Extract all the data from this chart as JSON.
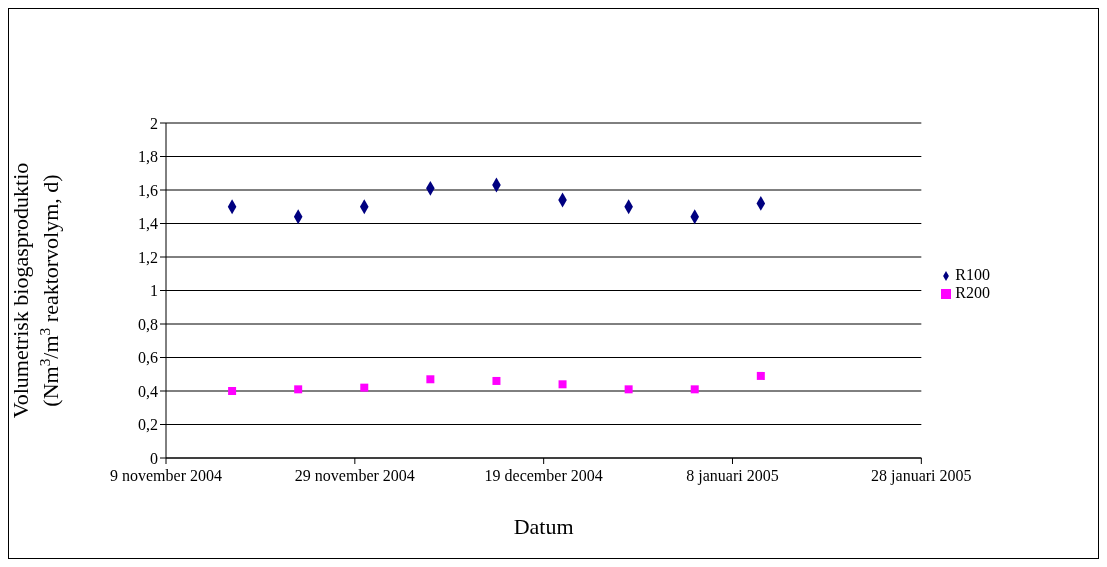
{
  "chart_data": {
    "type": "scatter",
    "xlabel": "Datum",
    "ylabel": "Volumetrisk biogasproduktio (Nm$^{3}$/m$^{3}$ reaktorvolym, d)",
    "x": [
      "2004-11-16",
      "2004-11-23",
      "2004-11-30",
      "2004-12-07",
      "2004-12-14",
      "2004-12-21",
      "2004-12-28",
      "2005-01-04",
      "2005-01-11"
    ],
    "series": [
      {
        "name": "R100",
        "color": "#000080",
        "marker": "diamond",
        "values": [
          1.5,
          1.44,
          1.5,
          1.61,
          1.63,
          1.54,
          1.5,
          1.44,
          1.52
        ]
      },
      {
        "name": "R200",
        "color": "#ff00ff",
        "marker": "square",
        "values": [
          0.4,
          0.41,
          0.42,
          0.47,
          0.46,
          0.44,
          0.41,
          0.41,
          0.49
        ]
      }
    ],
    "xlim": [
      "2004-11-09",
      "2005-01-28"
    ],
    "xticks": [
      {
        "value": "2004-11-09",
        "label": "9 november 2004"
      },
      {
        "value": "2004-11-29",
        "label": "29 november 2004"
      },
      {
        "value": "2004-12-19",
        "label": "19 december 2004"
      },
      {
        "value": "2005-01-08",
        "label": "8 januari 2005"
      },
      {
        "value": "2005-01-28",
        "label": "28 januari 2005"
      }
    ],
    "ylim": [
      0,
      2
    ],
    "yticks": [
      0,
      {
        "value": 0.2,
        "label": "0,2"
      },
      {
        "value": 0.4,
        "label": "0,4"
      },
      {
        "value": 0.6,
        "label": "0,6"
      },
      {
        "value": 0.8,
        "label": "0,8"
      },
      1,
      {
        "value": 1.2,
        "label": "1,2"
      },
      {
        "value": 1.4,
        "label": "1,4"
      },
      {
        "value": 1.6,
        "label": "1,6"
      },
      {
        "value": 1.8,
        "label": "1,8"
      },
      2
    ],
    "grid": "y",
    "legend": "right"
  }
}
